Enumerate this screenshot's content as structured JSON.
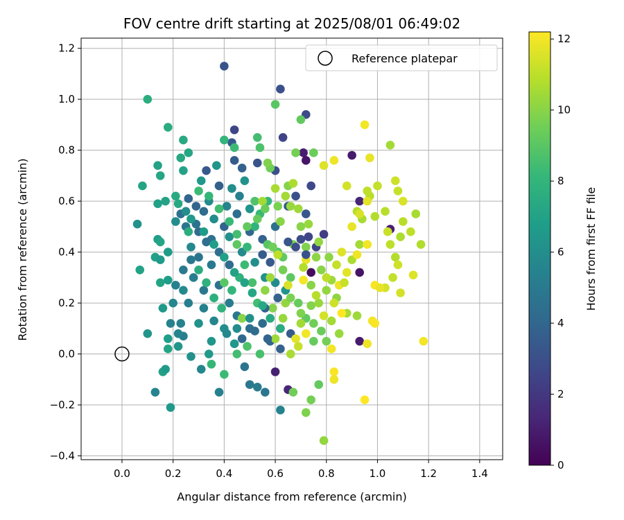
{
  "chart_data": {
    "type": "scatter",
    "title": "FOV centre drift starting at 2025/08/01 06:49:02",
    "xlabel": "Angular distance from reference (arcmin)",
    "ylabel": "Rotation from reference (arcmin)",
    "xlim": [
      -0.16,
      1.49
    ],
    "ylim": [
      -0.415,
      1.24
    ],
    "xticks": [
      0.0,
      0.2,
      0.4,
      0.6,
      0.8,
      1.0,
      1.2,
      1.4
    ],
    "xtick_labels": [
      "0.0",
      "0.2",
      "0.4",
      "0.6",
      "0.8",
      "1.0",
      "1.2",
      "1.4"
    ],
    "yticks": [
      -0.4,
      -0.2,
      0.0,
      0.2,
      0.4,
      0.6,
      0.8,
      1.0,
      1.2
    ],
    "ytick_labels": [
      "−0.4",
      "−0.2",
      "0.0",
      "0.2",
      "0.4",
      "0.6",
      "0.8",
      "1.0",
      "1.2"
    ],
    "grid": true,
    "legend": {
      "placement": "top-right",
      "entries": [
        "Reference platepar"
      ]
    },
    "colorbar": {
      "label": "Hours from first FF file",
      "range": [
        0,
        12.2
      ],
      "ticks": [
        0,
        2,
        4,
        6,
        8,
        10,
        12
      ],
      "tick_labels": [
        "0",
        "2",
        "4",
        "6",
        "8",
        "10",
        "12"
      ],
      "colormap": [
        "#440154",
        "#482878",
        "#3e4989",
        "#31688e",
        "#26828e",
        "#1f9e89",
        "#35b779",
        "#6ece58",
        "#b5de2b",
        "#fde725"
      ]
    },
    "reference_point": {
      "x": 0.0,
      "y": 0.0
    },
    "points": [
      [
        0.4,
        1.13,
        3.2
      ],
      [
        0.62,
        1.04,
        3.0
      ],
      [
        0.72,
        0.94,
        2.8
      ],
      [
        0.63,
        0.85,
        2.5
      ],
      [
        0.44,
        0.88,
        2.6
      ],
      [
        0.71,
        0.79,
        1.0
      ],
      [
        0.9,
        0.78,
        0.9
      ],
      [
        0.72,
        0.76,
        0.7
      ],
      [
        0.93,
        0.6,
        1.3
      ],
      [
        1.05,
        0.49,
        1.0
      ],
      [
        0.74,
        0.32,
        0.4
      ],
      [
        0.93,
        0.32,
        0.7
      ],
      [
        0.93,
        0.05,
        0.9
      ],
      [
        0.6,
        -0.07,
        1.1
      ],
      [
        0.65,
        -0.14,
        1.3
      ],
      [
        0.43,
        0.83,
        3.4
      ],
      [
        0.44,
        0.76,
        3.6
      ],
      [
        0.47,
        0.73,
        3.8
      ],
      [
        0.53,
        0.75,
        3.2
      ],
      [
        0.6,
        0.72,
        3.0
      ],
      [
        0.33,
        0.72,
        3.4
      ],
      [
        0.38,
        0.66,
        3.7
      ],
      [
        0.26,
        0.61,
        4.0
      ],
      [
        0.29,
        0.58,
        3.9
      ],
      [
        0.32,
        0.56,
        4.3
      ],
      [
        0.23,
        0.55,
        4.5
      ],
      [
        0.25,
        0.5,
        4.8
      ],
      [
        0.3,
        0.48,
        4.2
      ],
      [
        0.35,
        0.45,
        4.6
      ],
      [
        0.4,
        0.5,
        3.9
      ],
      [
        0.45,
        0.55,
        4.4
      ],
      [
        0.5,
        0.48,
        4.1
      ],
      [
        0.55,
        0.45,
        3.8
      ],
      [
        0.6,
        0.5,
        4.5
      ],
      [
        0.65,
        0.58,
        3.5
      ],
      [
        0.68,
        0.62,
        3.0
      ],
      [
        0.7,
        0.45,
        2.8
      ],
      [
        0.72,
        0.55,
        3.3
      ],
      [
        0.3,
        0.38,
        4.7
      ],
      [
        0.35,
        0.35,
        5.0
      ],
      [
        0.28,
        0.3,
        5.2
      ],
      [
        0.32,
        0.25,
        4.9
      ],
      [
        0.38,
        0.27,
        4.6
      ],
      [
        0.42,
        0.2,
        5.1
      ],
      [
        0.45,
        0.15,
        4.8
      ],
      [
        0.5,
        0.1,
        4.5
      ],
      [
        0.55,
        0.12,
        4.3
      ],
      [
        0.58,
        0.05,
        4.0
      ],
      [
        0.62,
        0.02,
        3.8
      ],
      [
        0.66,
        0.08,
        3.5
      ],
      [
        0.48,
        -0.05,
        4.7
      ],
      [
        0.5,
        -0.12,
        4.9
      ],
      [
        0.53,
        -0.13,
        5.1
      ],
      [
        0.56,
        -0.15,
        4.8
      ],
      [
        0.38,
        -0.15,
        5.3
      ],
      [
        0.13,
        -0.15,
        5.5
      ],
      [
        0.62,
        -0.22,
        5.4
      ],
      [
        0.31,
        -0.06,
        5.6
      ],
      [
        0.24,
        0.07,
        5.2
      ],
      [
        0.19,
        0.12,
        5.4
      ],
      [
        0.2,
        0.2,
        5.6
      ],
      [
        0.24,
        0.25,
        5.8
      ],
      [
        0.27,
        0.42,
        5.7
      ],
      [
        0.21,
        0.52,
        5.9
      ],
      [
        0.25,
        0.56,
        6.0
      ],
      [
        0.34,
        0.6,
        5.8
      ],
      [
        0.41,
        0.58,
        5.5
      ],
      [
        0.46,
        0.62,
        5.3
      ],
      [
        0.36,
        0.53,
        5.9
      ],
      [
        0.42,
        0.46,
        6.1
      ],
      [
        0.47,
        0.4,
        5.8
      ],
      [
        0.52,
        0.36,
        6.0
      ],
      [
        0.56,
        0.3,
        6.2
      ],
      [
        0.6,
        0.28,
        5.9
      ],
      [
        0.64,
        0.25,
        6.3
      ],
      [
        0.3,
        0.12,
        6.2
      ],
      [
        0.35,
        0.05,
        6.4
      ],
      [
        0.4,
        0.1,
        6.0
      ],
      [
        0.44,
        0.04,
        6.5
      ],
      [
        0.34,
        0.0,
        6.6
      ],
      [
        0.27,
        -0.01,
        6.1
      ],
      [
        0.22,
        0.03,
        6.4
      ],
      [
        0.18,
        0.06,
        6.8
      ],
      [
        0.16,
        -0.07,
        7.0
      ],
      [
        0.17,
        -0.06,
        6.7
      ],
      [
        0.18,
        0.02,
        7.1
      ],
      [
        0.19,
        -0.21,
        6.5
      ],
      [
        0.1,
        0.08,
        6.3
      ],
      [
        0.07,
        0.33,
        7.0
      ],
      [
        0.13,
        0.38,
        6.9
      ],
      [
        0.15,
        0.37,
        6.6
      ],
      [
        0.14,
        0.45,
        6.8
      ],
      [
        0.15,
        0.44,
        7.1
      ],
      [
        0.18,
        0.4,
        6.7
      ],
      [
        0.06,
        0.51,
        6.2
      ],
      [
        0.17,
        0.6,
        7.0
      ],
      [
        0.14,
        0.59,
        6.9
      ],
      [
        0.16,
        0.18,
        6.5
      ],
      [
        0.15,
        0.28,
        7.1
      ],
      [
        0.18,
        0.29,
        6.8
      ],
      [
        0.14,
        0.74,
        7.0
      ],
      [
        0.15,
        0.7,
        7.2
      ],
      [
        0.08,
        0.66,
        7.1
      ],
      [
        0.23,
        0.77,
        7.3
      ],
      [
        0.24,
        0.72,
        7.0
      ],
      [
        0.24,
        0.84,
        7.4
      ],
      [
        0.26,
        0.79,
        7.2
      ],
      [
        0.18,
        0.89,
        7.5
      ],
      [
        0.1,
        1.0,
        7.6
      ],
      [
        0.21,
        0.62,
        7.4
      ],
      [
        0.22,
        0.59,
        7.3
      ],
      [
        0.26,
        0.48,
        7.6
      ],
      [
        0.3,
        0.33,
        7.5
      ],
      [
        0.33,
        0.28,
        7.8
      ],
      [
        0.36,
        0.22,
        7.7
      ],
      [
        0.39,
        0.18,
        7.9
      ],
      [
        0.43,
        0.25,
        8.0
      ],
      [
        0.46,
        0.3,
        7.8
      ],
      [
        0.49,
        0.42,
        8.1
      ],
      [
        0.52,
        0.5,
        7.9
      ],
      [
        0.54,
        0.55,
        8.2
      ],
      [
        0.57,
        0.6,
        8.0
      ],
      [
        0.3,
        0.64,
        8.3
      ],
      [
        0.34,
        0.62,
        8.1
      ],
      [
        0.38,
        0.57,
        8.4
      ],
      [
        0.42,
        0.52,
        8.2
      ],
      [
        0.45,
        0.47,
        8.5
      ],
      [
        0.48,
        0.35,
        8.3
      ],
      [
        0.51,
        0.28,
        8.6
      ],
      [
        0.53,
        0.2,
        8.4
      ],
      [
        0.35,
        -0.04,
        8.1
      ],
      [
        0.4,
        -0.08,
        8.3
      ],
      [
        0.45,
        0.0,
        8.5
      ],
      [
        0.49,
        0.03,
        8.7
      ],
      [
        0.54,
        0.0,
        8.6
      ],
      [
        0.4,
        0.84,
        8.0
      ],
      [
        0.44,
        0.81,
        8.3
      ],
      [
        0.53,
        0.85,
        8.5
      ],
      [
        0.54,
        0.81,
        8.7
      ],
      [
        0.52,
        0.6,
        8.8
      ],
      [
        0.57,
        0.43,
        9.0
      ],
      [
        0.61,
        0.4,
        8.9
      ],
      [
        0.63,
        0.38,
        9.2
      ],
      [
        0.66,
        0.3,
        9.1
      ],
      [
        0.69,
        0.2,
        9.3
      ],
      [
        0.72,
        0.14,
        9.2
      ],
      [
        0.75,
        0.12,
        9.5
      ],
      [
        0.78,
        0.09,
        9.4
      ],
      [
        0.8,
        0.05,
        9.6
      ],
      [
        0.75,
        0.05,
        9.3
      ],
      [
        0.77,
        -0.12,
        9.2
      ],
      [
        0.74,
        -0.18,
        9.6
      ],
      [
        0.72,
        -0.23,
        9.8
      ],
      [
        0.67,
        -0.15,
        9.5
      ],
      [
        0.79,
        -0.34,
        10.2
      ],
      [
        0.6,
        0.98,
        9.0
      ],
      [
        0.7,
        0.92,
        9.2
      ],
      [
        0.75,
        0.79,
        9.4
      ],
      [
        0.68,
        0.79,
        9.6
      ],
      [
        0.58,
        0.73,
        9.5
      ],
      [
        0.57,
        0.75,
        9.8
      ],
      [
        0.61,
        0.58,
        9.7
      ],
      [
        0.65,
        0.66,
        9.9
      ],
      [
        0.7,
        0.5,
        10.0
      ],
      [
        0.72,
        0.42,
        9.8
      ],
      [
        0.76,
        0.38,
        10.1
      ],
      [
        0.74,
        0.27,
        10.0
      ],
      [
        0.77,
        0.2,
        10.3
      ],
      [
        0.8,
        0.25,
        10.2
      ],
      [
        0.82,
        0.29,
        10.4
      ],
      [
        0.84,
        0.22,
        10.1
      ],
      [
        0.82,
        0.13,
        10.5
      ],
      [
        0.85,
        0.08,
        10.3
      ],
      [
        0.88,
        0.16,
        10.6
      ],
      [
        0.92,
        0.15,
        10.4
      ],
      [
        0.9,
        0.37,
        10.7
      ],
      [
        0.93,
        0.43,
        10.5
      ],
      [
        0.92,
        0.56,
        10.8
      ],
      [
        0.94,
        0.53,
        10.6
      ],
      [
        0.97,
        0.62,
        10.9
      ],
      [
        0.96,
        0.64,
        11.0
      ],
      [
        0.99,
        0.54,
        10.8
      ],
      [
        1.0,
        0.66,
        11.1
      ],
      [
        1.03,
        0.56,
        10.9
      ],
      [
        1.04,
        0.48,
        11.2
      ],
      [
        1.05,
        0.43,
        11.0
      ],
      [
        1.07,
        0.38,
        10.8
      ],
      [
        1.08,
        0.35,
        11.3
      ],
      [
        1.06,
        0.3,
        11.1
      ],
      [
        1.03,
        0.26,
        11.4
      ],
      [
        1.09,
        0.46,
        10.7
      ],
      [
        1.1,
        0.52,
        10.9
      ],
      [
        1.13,
        0.48,
        11.0
      ],
      [
        1.15,
        0.55,
        10.6
      ],
      [
        1.17,
        0.43,
        10.8
      ],
      [
        1.08,
        0.64,
        11.2
      ],
      [
        1.1,
        0.6,
        11.5
      ],
      [
        1.07,
        0.68,
        11.3
      ],
      [
        1.05,
        0.82,
        10.5
      ],
      [
        0.97,
        0.77,
        11.8
      ],
      [
        0.95,
        0.9,
        12.0
      ],
      [
        0.83,
        0.76,
        11.9
      ],
      [
        0.79,
        0.74,
        11.6
      ],
      [
        0.88,
        0.66,
        11.4
      ],
      [
        0.96,
        0.6,
        11.7
      ],
      [
        0.93,
        0.55,
        11.5
      ],
      [
        0.9,
        0.5,
        11.8
      ],
      [
        0.96,
        0.43,
        12.0
      ],
      [
        0.92,
        0.39,
        11.9
      ],
      [
        0.86,
        0.4,
        11.6
      ],
      [
        0.88,
        0.32,
        11.7
      ],
      [
        0.85,
        0.27,
        11.9
      ],
      [
        0.99,
        0.27,
        12.1
      ],
      [
        1.01,
        0.26,
        11.8
      ],
      [
        1.14,
        0.31,
        11.6
      ],
      [
        1.09,
        0.24,
        11.4
      ],
      [
        0.98,
        0.13,
        12.0
      ],
      [
        0.99,
        0.12,
        12.1
      ],
      [
        0.86,
        0.16,
        12.2
      ],
      [
        0.82,
        0.02,
        12.0
      ],
      [
        0.96,
        0.04,
        11.9
      ],
      [
        1.18,
        0.05,
        12.0
      ],
      [
        0.83,
        -0.07,
        12.1
      ],
      [
        0.83,
        -0.1,
        11.9
      ],
      [
        0.95,
        -0.18,
        12.2
      ],
      [
        0.71,
        0.29,
        12.0
      ],
      [
        0.72,
        0.37,
        11.8
      ],
      [
        0.65,
        0.27,
        11.5
      ],
      [
        0.68,
        0.06,
        11.7
      ],
      [
        0.72,
        0.08,
        12.0
      ],
      [
        0.69,
        0.03,
        11.2
      ],
      [
        0.61,
        0.39,
        11.0
      ],
      [
        0.58,
        0.3,
        10.4
      ],
      [
        0.66,
        0.58,
        10.3
      ],
      [
        0.55,
        0.6,
        10.5
      ],
      [
        0.62,
        0.52,
        10.0
      ],
      [
        0.67,
        0.43,
        9.8
      ],
      [
        0.64,
        0.2,
        10.2
      ],
      [
        0.56,
        0.25,
        10.1
      ],
      [
        0.59,
        0.18,
        9.9
      ],
      [
        0.47,
        0.14,
        10.0
      ],
      [
        0.63,
        0.14,
        10.3
      ],
      [
        0.7,
        0.12,
        10.5
      ],
      [
        0.66,
        0.0,
        10.6
      ],
      [
        0.6,
        0.06,
        10.4
      ],
      [
        0.73,
        0.46,
        2.6
      ],
      [
        0.76,
        0.42,
        2.5
      ],
      [
        0.79,
        0.47,
        2.2
      ],
      [
        0.74,
        0.66,
        2.7
      ],
      [
        0.68,
        0.42,
        2.9
      ],
      [
        0.72,
        0.39,
        3.1
      ],
      [
        0.65,
        0.44,
        3.3
      ],
      [
        0.58,
        0.36,
        3.4
      ],
      [
        0.55,
        0.39,
        3.6
      ],
      [
        0.61,
        0.22,
        3.8
      ],
      [
        0.56,
        0.18,
        3.9
      ],
      [
        0.62,
        0.1,
        3.7
      ],
      [
        0.57,
        0.06,
        4.0
      ],
      [
        0.52,
        0.09,
        4.2
      ],
      [
        0.47,
        0.06,
        4.1
      ],
      [
        0.42,
        0.35,
        4.3
      ],
      [
        0.38,
        0.4,
        4.5
      ],
      [
        0.33,
        0.44,
        4.4
      ],
      [
        0.29,
        0.51,
        4.7
      ],
      [
        0.27,
        0.37,
        4.9
      ],
      [
        0.24,
        0.33,
        5.0
      ],
      [
        0.21,
        0.27,
        5.3
      ],
      [
        0.26,
        0.2,
        5.2
      ],
      [
        0.23,
        0.12,
        5.4
      ],
      [
        0.22,
        0.08,
        5.5
      ],
      [
        0.32,
        0.18,
        5.3
      ],
      [
        0.36,
        0.13,
        5.6
      ],
      [
        0.41,
        0.08,
        5.7
      ],
      [
        0.45,
        0.1,
        5.9
      ],
      [
        0.5,
        0.14,
        6.1
      ],
      [
        0.43,
        0.65,
        6.0
      ],
      [
        0.48,
        0.68,
        6.2
      ],
      [
        0.5,
        0.57,
        6.3
      ],
      [
        0.37,
        0.74,
        6.4
      ],
      [
        0.31,
        0.68,
        6.5
      ],
      [
        0.27,
        0.53,
        6.6
      ],
      [
        0.32,
        0.48,
        6.7
      ],
      [
        0.36,
        0.43,
        6.8
      ],
      [
        0.4,
        0.38,
        6.9
      ],
      [
        0.44,
        0.32,
        7.0
      ],
      [
        0.48,
        0.28,
        7.1
      ],
      [
        0.51,
        0.24,
        7.2
      ],
      [
        0.55,
        0.19,
        7.3
      ],
      [
        0.58,
        0.14,
        7.4
      ],
      [
        0.62,
        0.1,
        7.5
      ],
      [
        0.4,
        0.28,
        9.0
      ],
      [
        0.45,
        0.43,
        9.1
      ],
      [
        0.49,
        0.5,
        9.2
      ],
      [
        0.53,
        0.53,
        9.3
      ],
      [
        0.56,
        0.57,
        9.4
      ],
      [
        0.59,
        0.42,
        9.5
      ],
      [
        0.63,
        0.33,
        9.6
      ],
      [
        0.66,
        0.22,
        9.7
      ],
      [
        0.7,
        0.16,
        9.8
      ],
      [
        0.74,
        0.19,
        9.9
      ],
      [
        0.78,
        0.33,
        10.0
      ],
      [
        0.81,
        0.38,
        10.1
      ],
      [
        0.77,
        0.44,
        10.2
      ],
      [
        0.73,
        0.51,
        10.3
      ],
      [
        0.69,
        0.57,
        10.4
      ],
      [
        0.64,
        0.62,
        10.5
      ],
      [
        0.6,
        0.65,
        10.6
      ],
      [
        0.67,
        0.67,
        10.7
      ],
      [
        0.71,
        0.34,
        10.8
      ],
      [
        0.76,
        0.23,
        10.9
      ],
      [
        0.8,
        0.3,
        11.0
      ],
      [
        0.84,
        0.35,
        11.1
      ],
      [
        0.87,
        0.28,
        11.2
      ],
      [
        0.83,
        0.2,
        11.3
      ],
      [
        0.79,
        0.15,
        11.4
      ]
    ]
  }
}
